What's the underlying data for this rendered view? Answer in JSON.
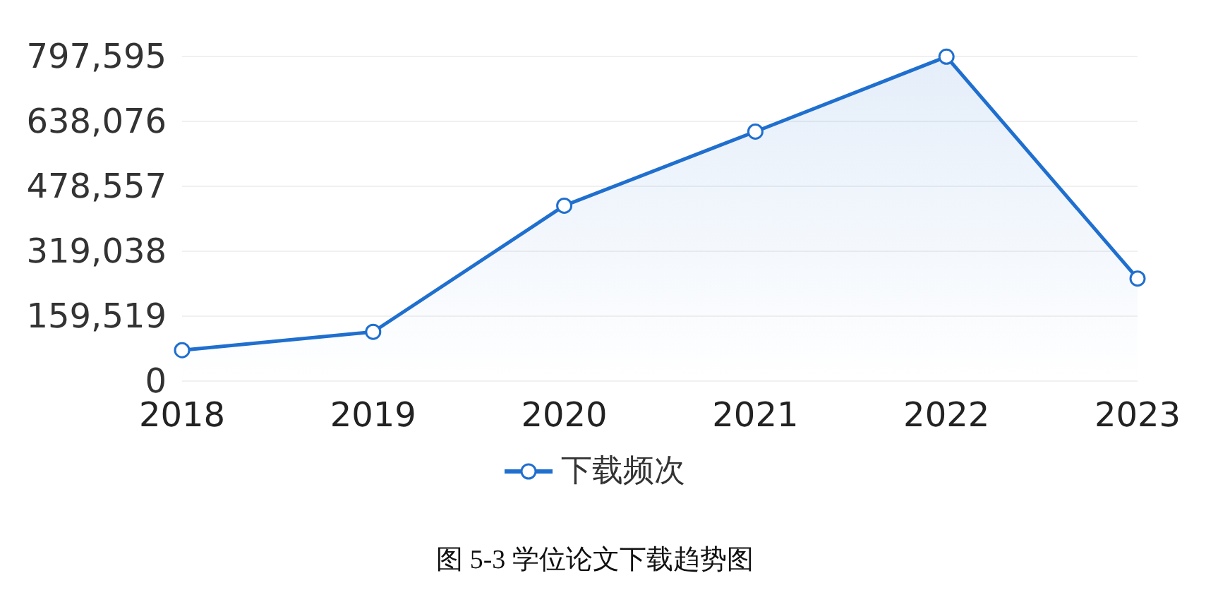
{
  "chart_data": {
    "type": "area",
    "categories": [
      "2018",
      "2019",
      "2020",
      "2021",
      "2022",
      "2023"
    ],
    "series": [
      {
        "name": "下载频次",
        "color": "#1f6fcf",
        "values": [
          76000,
          121000,
          431000,
          613000,
          797000,
          252000
        ]
      }
    ],
    "ylim": [
      0,
      797595
    ],
    "yticks": [
      0,
      {
        "value": 159519,
        "label": "159,519"
      },
      {
        "value": 319038,
        "label": "319,038"
      },
      {
        "value": 478557,
        "label": "478,557"
      },
      {
        "value": 638076,
        "label": "638,076"
      },
      {
        "value": 797595,
        "label": "797,595"
      }
    ],
    "grid": "y",
    "legend": "bottom",
    "marker": "circle",
    "annotations": [
      "图 5-3 学位论文下载趋势图"
    ]
  }
}
